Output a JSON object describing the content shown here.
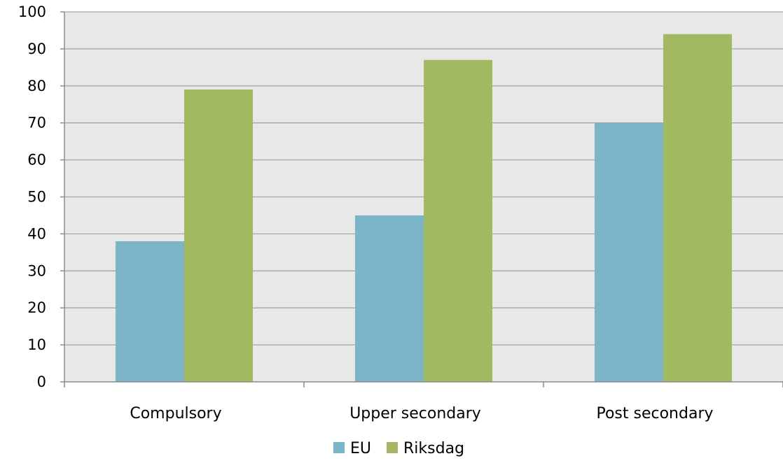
{
  "chart_data": {
    "type": "bar",
    "categories": [
      "Compulsory",
      "Upper secondary",
      "Post secondary"
    ],
    "series": [
      {
        "name": "EU",
        "values": [
          38,
          45,
          70
        ],
        "color": "#7db5c8"
      },
      {
        "name": "Riksdag",
        "values": [
          79,
          87,
          94
        ],
        "color": "#a2b861"
      }
    ],
    "ylim": [
      0,
      100
    ],
    "yticks": [
      0,
      10,
      20,
      30,
      40,
      50,
      60,
      70,
      80,
      90,
      100
    ],
    "grid": true,
    "legend_position": "bottom-center",
    "plot_background": "#e8e8e8",
    "gridline_color": "#a6a6a6"
  }
}
